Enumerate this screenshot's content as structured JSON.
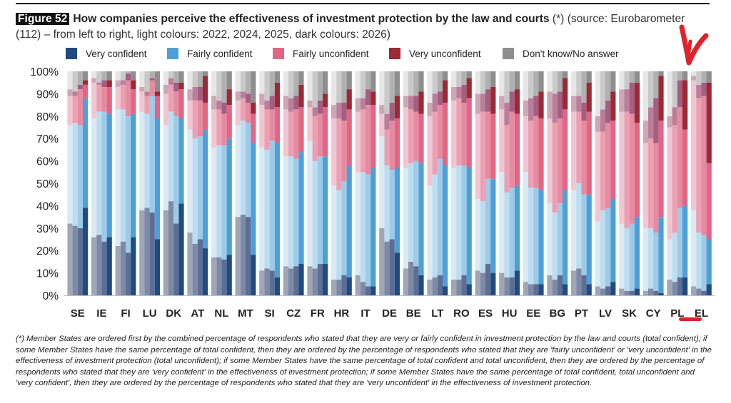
{
  "figure": {
    "number_label": "Figure 52",
    "title": "How companies perceive the effectiveness of investment protection by the law and courts",
    "note": "(*) (source: Eurobarometer (112) – from left to right, light colours: 2022, 2024, 2025, dark colours: 2026)"
  },
  "footnote": "(*) Member States are ordered first by the combined percentage of respondents who stated that they are very or fairly confident in investment protection by the law and courts (total confident); if some Member States have the same percentage of total confident, then they are ordered by the percentage of respondents who stated that they are 'fairly unconfident' or 'very unconfident' in the effectiveness of investment protection (total unconfident); if some Member States have the same percentage of total confident and total unconfident, then they are ordered by the percentage of respondents who stated that they are 'very confident' in the effectiveness of investment protection; if some Member States have the same percentage of total confident, total unconfident and 'very confident', then they are ordered by the percentage of respondents who stated that they are 'very unconfident' in the effectiveness of investment protection.",
  "colors": {
    "Very confident": [
      "#9fa6b7",
      "#7d8aa6",
      "#5a6e96",
      "#1f4b7f"
    ],
    "Fairly confident": [
      "#d7eaf6",
      "#bcdcf0",
      "#9ccbea",
      "#4f9fd7"
    ],
    "Fairly unconfident": [
      "#f2c6d0",
      "#ec9fb2",
      "#e68aa1",
      "#e06685"
    ],
    "Very unconfident": [
      "#cfa6b6",
      "#ba7e98",
      "#a55d80",
      "#9a2a35"
    ],
    "Don't know/No answer": [
      "#e6e6e6",
      "#c9c9c9",
      "#b0b0b0",
      "#8e8e8e"
    ]
  },
  "annotation": {
    "color": "#e0222b",
    "marks": [
      "red-arrow",
      "red-underline"
    ]
  },
  "chart_data": {
    "type": "bar",
    "stacked": true,
    "orientation": "vertical",
    "sub_bars": [
      "2022",
      "2024",
      "2025",
      "2026"
    ],
    "categories": [
      "SE",
      "IE",
      "FI",
      "LU",
      "DK",
      "AT",
      "NL",
      "MT",
      "SI",
      "CZ",
      "FR",
      "HR",
      "IT",
      "DE",
      "BE",
      "LT",
      "RO",
      "ES",
      "HU",
      "EE",
      "BG",
      "PT",
      "LV",
      "SK",
      "CY",
      "PL",
      "EL"
    ],
    "y_ticks": [
      "0%",
      "10%",
      "20%",
      "30%",
      "40%",
      "50%",
      "60%",
      "70%",
      "80%",
      "90%",
      "100%"
    ],
    "ylim": [
      0,
      100
    ],
    "legend": [
      "Very confident",
      "Fairly confident",
      "Fairly unconfident",
      "Very unconfident",
      "Don't know/No answer"
    ],
    "legend_position": "top",
    "grid": false,
    "series": [
      {
        "name": "Very confident",
        "values": [
          [
            32,
            31,
            30,
            39
          ],
          [
            26,
            27,
            24,
            26
          ],
          [
            22,
            24,
            19,
            26
          ],
          [
            38,
            39,
            37,
            25
          ],
          [
            38,
            42,
            32,
            41
          ],
          [
            28,
            23,
            25,
            21
          ],
          [
            17,
            17,
            16,
            18
          ],
          [
            35,
            36,
            35,
            18
          ],
          [
            11,
            12,
            11,
            8
          ],
          [
            13,
            12,
            13,
            14
          ],
          [
            13,
            12,
            14,
            14
          ],
          [
            7,
            7,
            9,
            8
          ],
          [
            9,
            6,
            4,
            4
          ],
          [
            30,
            24,
            25,
            19
          ],
          [
            12,
            15,
            13,
            9
          ],
          [
            7,
            8,
            9,
            4
          ],
          [
            7,
            7,
            9,
            5
          ],
          [
            11,
            10,
            14,
            10
          ],
          [
            10,
            8,
            8,
            11
          ],
          [
            6,
            5,
            5,
            5
          ],
          [
            9,
            7,
            9,
            5
          ],
          [
            11,
            12,
            9,
            5
          ],
          [
            4,
            3,
            4,
            6
          ],
          [
            3,
            2,
            2,
            3
          ],
          [
            2,
            3,
            2,
            1
          ],
          [
            7,
            6,
            8,
            8
          ],
          [
            4,
            3,
            2,
            5
          ]
        ]
      },
      {
        "name": "Fairly confident",
        "values": [
          [
            44,
            46,
            46,
            49
          ],
          [
            53,
            55,
            58,
            55
          ],
          [
            61,
            59,
            61,
            55
          ],
          [
            44,
            42,
            52,
            54
          ],
          [
            38,
            40,
            48,
            38
          ],
          [
            46,
            47,
            46,
            53
          ],
          [
            49,
            50,
            51,
            52
          ],
          [
            41,
            42,
            42,
            50
          ],
          [
            55,
            53,
            58,
            60
          ],
          [
            49,
            50,
            48,
            50
          ],
          [
            56,
            48,
            48,
            48
          ],
          [
            42,
            40,
            42,
            50
          ],
          [
            46,
            49,
            50,
            53
          ],
          [
            41,
            34,
            31,
            38
          ],
          [
            45,
            44,
            47,
            50
          ],
          [
            42,
            46,
            52,
            54
          ],
          [
            50,
            51,
            49,
            52
          ],
          [
            32,
            32,
            38,
            42
          ],
          [
            45,
            38,
            40,
            38
          ],
          [
            49,
            43,
            43,
            42
          ],
          [
            32,
            30,
            32,
            42
          ],
          [
            36,
            38,
            36,
            40
          ],
          [
            29,
            35,
            35,
            37
          ],
          [
            29,
            28,
            30,
            32
          ],
          [
            28,
            27,
            26,
            34
          ],
          [
            18,
            22,
            31,
            32
          ],
          [
            34,
            25,
            25,
            20
          ]
        ]
      },
      {
        "name": "Fairly unconfident",
        "values": [
          [
            13,
            12,
            16,
            6
          ],
          [
            16,
            12,
            11,
            12
          ],
          [
            10,
            11,
            16,
            11
          ],
          [
            9,
            8,
            7,
            10
          ],
          [
            14,
            12,
            11,
            13
          ],
          [
            13,
            17,
            16,
            12
          ],
          [
            17,
            16,
            14,
            15
          ],
          [
            11,
            10,
            9,
            13
          ],
          [
            19,
            18,
            14,
            16
          ],
          [
            21,
            20,
            22,
            20
          ],
          [
            15,
            20,
            19,
            22
          ],
          [
            30,
            32,
            27,
            25
          ],
          [
            27,
            28,
            31,
            28
          ],
          [
            10,
            16,
            22,
            22
          ],
          [
            27,
            24,
            22,
            22
          ],
          [
            31,
            28,
            24,
            28
          ],
          [
            30,
            30,
            28,
            31
          ],
          [
            38,
            40,
            30,
            29
          ],
          [
            28,
            30,
            34,
            32
          ],
          [
            25,
            30,
            32,
            32
          ],
          [
            38,
            40,
            38,
            36
          ],
          [
            35,
            32,
            33,
            37
          ],
          [
            40,
            35,
            38,
            35
          ],
          [
            50,
            52,
            49,
            42
          ],
          [
            38,
            40,
            40,
            43
          ],
          [
            50,
            48,
            45,
            34
          ],
          [
            58,
            60,
            62,
            34
          ]
        ]
      },
      {
        "name": "Very unconfident",
        "values": [
          [
            3,
            2,
            2,
            2
          ],
          [
            2,
            1,
            3,
            3
          ],
          [
            3,
            2,
            3,
            4
          ],
          [
            2,
            2,
            1,
            2
          ],
          [
            4,
            3,
            4,
            3
          ],
          [
            5,
            6,
            6,
            12
          ],
          [
            6,
            4,
            5,
            7
          ],
          [
            4,
            3,
            4,
            5
          ],
          [
            5,
            4,
            6,
            11
          ],
          [
            6,
            6,
            6,
            10
          ],
          [
            3,
            4,
            6,
            6
          ],
          [
            6,
            7,
            8,
            9
          ],
          [
            6,
            5,
            7,
            6
          ],
          [
            4,
            7,
            8,
            10
          ],
          [
            5,
            6,
            7,
            10
          ],
          [
            6,
            8,
            6,
            10
          ],
          [
            6,
            5,
            8,
            9
          ],
          [
            9,
            8,
            10,
            12
          ],
          [
            6,
            10,
            9,
            11
          ],
          [
            7,
            10,
            9,
            12
          ],
          [
            12,
            13,
            12,
            14
          ],
          [
            7,
            7,
            8,
            13
          ],
          [
            7,
            10,
            10,
            13
          ],
          [
            10,
            10,
            14,
            18
          ],
          [
            10,
            14,
            20,
            20
          ],
          [
            5,
            8,
            12,
            22
          ],
          [
            2,
            6,
            6,
            36
          ]
        ]
      },
      {
        "name": "Don't know/No answer",
        "values": [
          [
            8,
            9,
            6,
            4
          ],
          [
            3,
            5,
            4,
            4
          ],
          [
            4,
            4,
            1,
            4
          ],
          [
            7,
            9,
            3,
            9
          ],
          [
            6,
            3,
            5,
            5
          ],
          [
            8,
            7,
            7,
            2
          ],
          [
            11,
            13,
            14,
            8
          ],
          [
            9,
            9,
            10,
            14
          ],
          [
            10,
            13,
            11,
            5
          ],
          [
            11,
            12,
            11,
            6
          ],
          [
            13,
            16,
            13,
            10
          ],
          [
            15,
            14,
            14,
            8
          ],
          [
            12,
            12,
            8,
            9
          ],
          [
            15,
            19,
            14,
            11
          ],
          [
            11,
            11,
            11,
            9
          ],
          [
            14,
            10,
            9,
            4
          ],
          [
            7,
            7,
            6,
            3
          ],
          [
            10,
            10,
            8,
            7
          ],
          [
            11,
            14,
            9,
            8
          ],
          [
            13,
            12,
            11,
            9
          ],
          [
            9,
            10,
            9,
            3
          ],
          [
            11,
            11,
            14,
            5
          ],
          [
            20,
            17,
            13,
            9
          ],
          [
            8,
            8,
            5,
            5
          ],
          [
            22,
            16,
            12,
            2
          ],
          [
            20,
            16,
            4,
            4
          ],
          [
            2,
            6,
            5,
            5
          ]
        ]
      }
    ]
  }
}
